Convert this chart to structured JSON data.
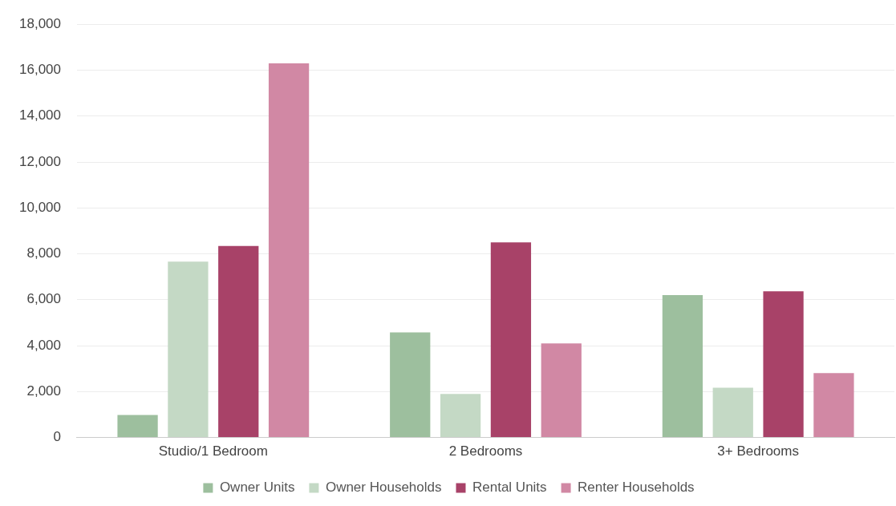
{
  "chart_data": {
    "type": "bar",
    "categories": [
      "Studio/1 Bedroom",
      "2 Bedrooms",
      "3+ Bedrooms"
    ],
    "series": [
      {
        "name": "Owner Units",
        "color": "#9dbf9e",
        "values": [
          980,
          4580,
          6200
        ]
      },
      {
        "name": "Owner Households",
        "color": "#c4d9c5",
        "values": [
          7660,
          1900,
          2170
        ]
      },
      {
        "name": "Rental Units",
        "color": "#a84268",
        "values": [
          8340,
          8500,
          6370
        ]
      },
      {
        "name": "Renter Households",
        "color": "#d188a4",
        "values": [
          16300,
          4100,
          2810
        ]
      }
    ],
    "ylim": [
      0,
      18000
    ],
    "yticks": [
      {
        "value": 0,
        "label": "0"
      },
      {
        "value": 2000,
        "label": "2,000"
      },
      {
        "value": 4000,
        "label": "4,000"
      },
      {
        "value": 6000,
        "label": "6,000"
      },
      {
        "value": 8000,
        "label": "8,000"
      },
      {
        "value": 10000,
        "label": "10,000"
      },
      {
        "value": 12000,
        "label": "12,000"
      },
      {
        "value": 14000,
        "label": "14,000"
      },
      {
        "value": 16000,
        "label": "16,000"
      },
      {
        "value": 18000,
        "label": "18,000"
      }
    ],
    "grid": "y",
    "legend": "bottom"
  }
}
